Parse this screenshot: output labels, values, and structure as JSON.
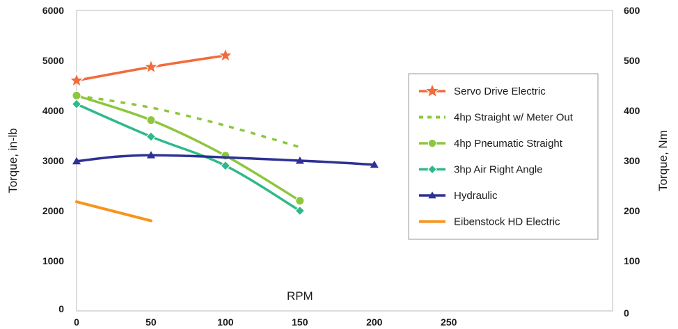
{
  "chart_data": {
    "type": "line",
    "xlabel": "RPM",
    "ylabel": "Torque, in-lb",
    "y2label": "Torque, Nm",
    "xlim": [
      0,
      360
    ],
    "ylim": [
      0,
      6000
    ],
    "y2lim": [
      0,
      600
    ],
    "x_ticks": [
      "0",
      "50",
      "100",
      "150",
      "200",
      "250"
    ],
    "y_ticks": [
      "0",
      "1000",
      "2000",
      "3000",
      "4000",
      "5000",
      "6000"
    ],
    "y2_ticks": [
      "0",
      "100",
      "200",
      "300",
      "400",
      "500",
      "600"
    ],
    "grid": false,
    "legend_position": "right",
    "series": [
      {
        "name": "Servo Drive Electric",
        "color": "#f26b3a",
        "line": "solid",
        "marker": "star",
        "points": [
          [
            0,
            4600
          ],
          [
            50,
            4870
          ],
          [
            100,
            5100
          ]
        ]
      },
      {
        "name": "4hp Straight w/ Meter Out",
        "color": "#8dc63f",
        "line": "dotted",
        "marker": "none",
        "points": [
          [
            0,
            4300
          ],
          [
            50,
            4060
          ],
          [
            100,
            3700
          ],
          [
            150,
            3270
          ]
        ]
      },
      {
        "name": "4hp Pneumatic Straight",
        "color": "#8dc63f",
        "line": "solid",
        "marker": "circle",
        "points": [
          [
            0,
            4300
          ],
          [
            50,
            3810
          ],
          [
            100,
            3100
          ],
          [
            150,
            2200
          ]
        ]
      },
      {
        "name": "3hp Air Right Angle",
        "color": "#2fb98c",
        "line": "solid",
        "marker": "diamond",
        "points": [
          [
            0,
            4130
          ],
          [
            50,
            3480
          ],
          [
            100,
            2900
          ],
          [
            150,
            2000
          ]
        ]
      },
      {
        "name": "Hydraulic",
        "color": "#2e3192",
        "line": "solid",
        "marker": "triangle",
        "points": [
          [
            0,
            2990
          ],
          [
            50,
            3110
          ],
          [
            150,
            3000
          ],
          [
            200,
            2920
          ]
        ]
      },
      {
        "name": "Eibenstock HD Electric",
        "color": "#f7941d",
        "line": "solid",
        "marker": "none",
        "points": [
          [
            0,
            2180
          ],
          [
            50,
            1800
          ]
        ]
      }
    ]
  }
}
